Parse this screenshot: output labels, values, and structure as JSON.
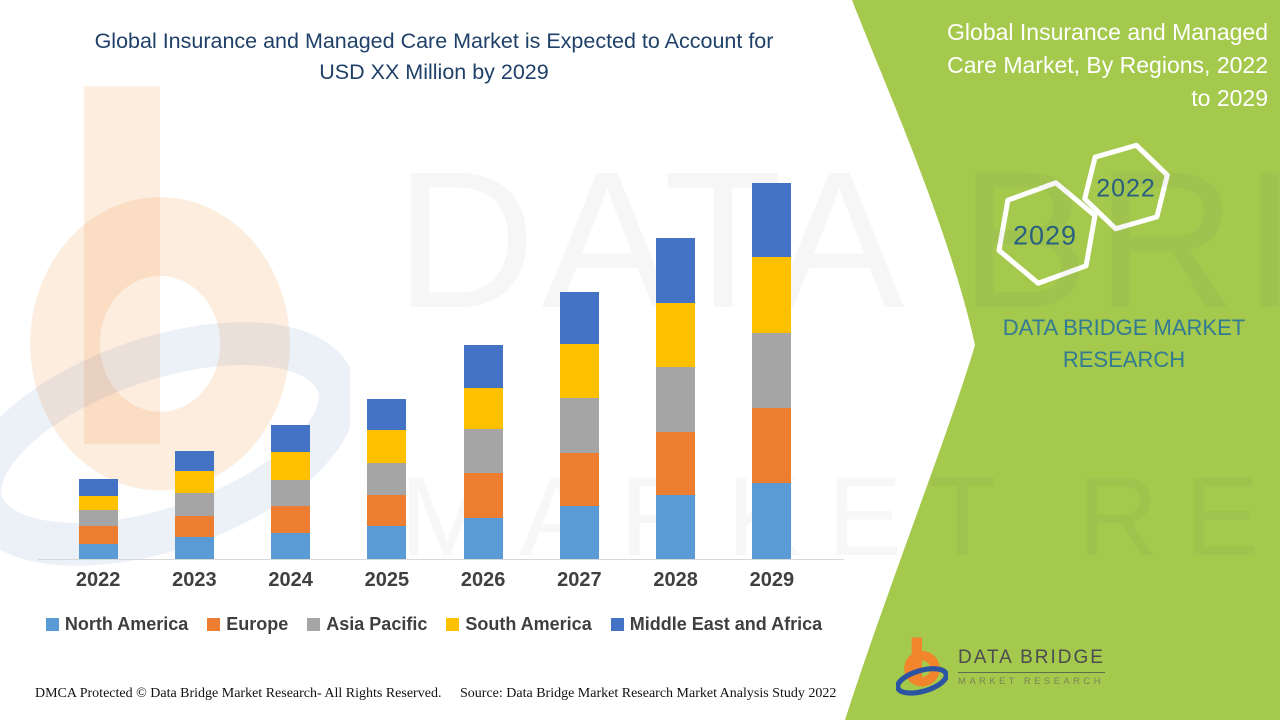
{
  "panel": {
    "header": "Global Insurance and Managed Care Market, By Regions, 2022 to 2029",
    "hexagons": [
      {
        "label": "2022"
      },
      {
        "label": "2029"
      }
    ],
    "brand": "DATA BRIDGE MARKET RESEARCH",
    "background_color": "#A5C94D",
    "header_color": "#FFFFFF",
    "brand_color": "#337A93"
  },
  "logo": {
    "line1": "DATA BRIDGE",
    "line2": "MARKET RESEARCH",
    "icon": "data-bridge-b-swoosh",
    "orange": "#F2842B",
    "blue": "#2B55A2"
  },
  "watermark": {
    "text1": "DATA BRIDGE",
    "text2": "MARKET RESEARCH"
  },
  "footer": {
    "left": "DMCA Protected © Data Bridge Market Research- All Rights Reserved.",
    "right": "Source: Data Bridge Market Research Market Analysis Study 2022"
  },
  "chart_data": {
    "type": "bar",
    "stacked": true,
    "title": "Global Insurance and Managed Care Market is Expected to Account for USD XX Million by 2029",
    "title_color": "#1F4068",
    "xlabel": "",
    "ylabel": "",
    "y_axis_visible": false,
    "gridlines": false,
    "legend_position": "bottom",
    "units": "USD Million (actual values masked as XX; segment sizes estimated in relative units from bar pixel heights)",
    "categories": [
      "2022",
      "2023",
      "2024",
      "2025",
      "2026",
      "2027",
      "2028",
      "2029"
    ],
    "series": [
      {
        "name": "North America",
        "color": "#5B9BD5",
        "values": [
          15,
          22,
          26,
          33,
          41,
          53,
          64,
          76
        ]
      },
      {
        "name": "Europe",
        "color": "#ED7D31",
        "values": [
          18,
          21,
          27,
          31,
          45,
          53,
          63,
          75
        ]
      },
      {
        "name": "Asia Pacific",
        "color": "#A5A5A5",
        "values": [
          16,
          23,
          26,
          32,
          44,
          55,
          65,
          75
        ]
      },
      {
        "name": "South America",
        "color": "#FFC000",
        "values": [
          14,
          22,
          28,
          33,
          41,
          54,
          64,
          76
        ]
      },
      {
        "name": "Middle East and Africa",
        "color": "#4472C4",
        "values": [
          17,
          20,
          27,
          31,
          43,
          52,
          65,
          74
        ]
      }
    ],
    "totals_relative": [
      80,
      108,
      134,
      160,
      214,
      267,
      321,
      376
    ]
  }
}
